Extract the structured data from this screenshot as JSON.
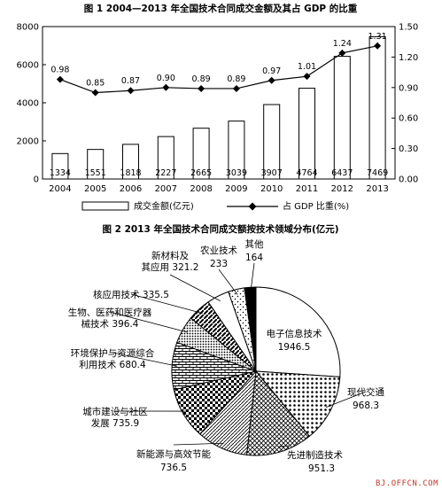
{
  "chart_data": [
    {
      "type": "bar",
      "title": "图 1  2004—2013 年全国技术合同成交金额及其占 GDP 的比重",
      "categories": [
        "2004",
        "2005",
        "2006",
        "2007",
        "2008",
        "2009",
        "2010",
        "2011",
        "2012",
        "2013"
      ],
      "series": [
        {
          "name": "成交金额(亿元)",
          "kind": "bar",
          "axis": "left",
          "values": [
            1334,
            1551,
            1818,
            2227,
            2665,
            3039,
            3907,
            4764,
            6437,
            7469
          ],
          "labels": [
            "1334",
            "1551",
            "1818",
            "2227",
            "2665",
            "3039",
            "3907",
            "4764",
            "6437",
            "7469"
          ]
        },
        {
          "name": "占 GDP 比重(%)",
          "kind": "line",
          "axis": "right",
          "values": [
            0.98,
            0.85,
            0.87,
            0.9,
            0.89,
            0.89,
            0.97,
            1.01,
            1.24,
            1.31
          ],
          "labels": [
            "0.98",
            "0.85",
            "0.87",
            "0.90",
            "0.89",
            "0.89",
            "0.97",
            "1.01",
            "1.24",
            "1.31"
          ]
        }
      ],
      "ylim": [
        0,
        8000
      ],
      "yticks": [
        "0",
        "2000",
        "4000",
        "6000",
        "8000"
      ],
      "y2lim": [
        0,
        1.5
      ],
      "y2ticks": [
        "0.00",
        "0.30",
        "0.60",
        "0.90",
        "1.20",
        "1.50"
      ],
      "legend_position": "bottom"
    },
    {
      "type": "pie",
      "title": "图 2  2013 年全国技术合同成交额按技术领域分布(亿元)",
      "slices": [
        {
          "label_lines": [
            "电子信息技术"
          ],
          "value_text": "1946.5",
          "value": 1946.5,
          "pattern": "white"
        },
        {
          "label_lines": [
            "现代交通"
          ],
          "value_text": "968.3",
          "value": 968.3,
          "pattern": "dots"
        },
        {
          "label_lines": [
            "先进制造技术"
          ],
          "value_text": "951.3",
          "value": 951.3,
          "pattern": "cross"
        },
        {
          "label_lines": [
            "新能源与高效节能"
          ],
          "value_text": "736.5",
          "value": 736.5,
          "pattern": "hatch"
        },
        {
          "label_lines": [
            "城市建设与社区",
            "发展"
          ],
          "value_text": "735.9",
          "value": 735.9,
          "pattern": "checker"
        },
        {
          "label_lines": [
            "环境保护与资源综合",
            "利用技术"
          ],
          "value_text": "680.4",
          "value": 680.4,
          "pattern": "bricks"
        },
        {
          "label_lines": [
            "生物、医药和医疗器",
            "械技术"
          ],
          "value_text": "396.4",
          "value": 396.4,
          "pattern": "dense"
        },
        {
          "label_lines": [
            "核应用技术"
          ],
          "value_text": "335.5",
          "value": 335.5,
          "pattern": "stripes"
        },
        {
          "label_lines": [
            "新材料及",
            "其应用"
          ],
          "value_text": "321.2",
          "value": 321.2,
          "pattern": "white"
        },
        {
          "label_lines": [
            "农业技术"
          ],
          "value_text": "233",
          "value": 233,
          "pattern": "sparse"
        },
        {
          "label_lines": [
            "其他"
          ],
          "value_text": "164",
          "value": 164,
          "pattern": "black"
        }
      ]
    }
  ],
  "watermark": "BJ.OFFCN.COM"
}
